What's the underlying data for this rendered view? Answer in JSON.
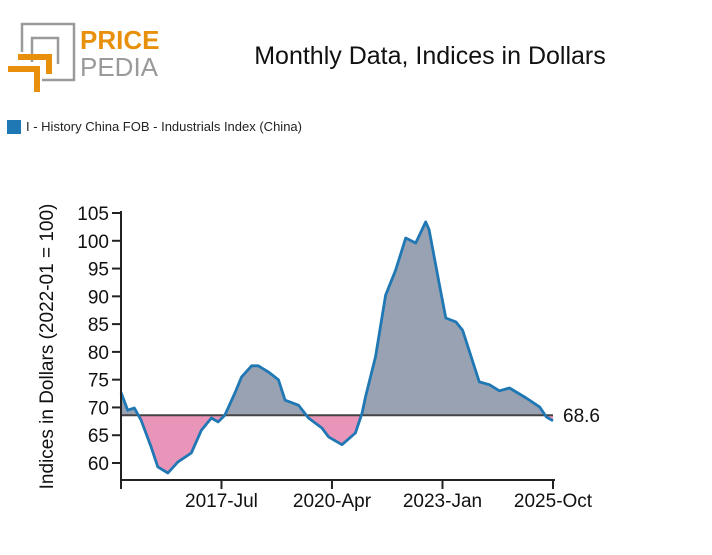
{
  "logo": {
    "line1": "PRICE",
    "line2": "PEDIA",
    "colors": {
      "orange": "#e8900c",
      "gray": "#9a9a9a"
    }
  },
  "title": "Monthly Data, Indices in Dollars",
  "legend": [
    {
      "label": "I - History China FOB - Industrials Index (China)",
      "color": "#1f77b4"
    }
  ],
  "chart_data": {
    "type": "area",
    "title": "Monthly Data, Indices in Dollars",
    "ylabel": "Indices in Dollars (2022-01 = 100)",
    "xlabel": "",
    "xlim": [
      "2015-01",
      "2025-10"
    ],
    "ylim": [
      57,
      105.5
    ],
    "yticks": [
      60,
      65,
      70,
      75,
      80,
      85,
      90,
      95,
      100,
      105
    ],
    "xticks": [
      {
        "date": "2017-07",
        "label": "2017-Jul"
      },
      {
        "date": "2020-04",
        "label": "2020-Apr"
      },
      {
        "date": "2023-01",
        "label": "2023-Jan"
      },
      {
        "date": "2025-10",
        "label": "2025-Oct"
      }
    ],
    "reference_line": {
      "value": 68.6,
      "label": "68.6"
    },
    "colors": {
      "line": "#1f77b4",
      "above": "#98a2b3",
      "below": "#e994b9",
      "reference": "#444444"
    },
    "series": [
      {
        "name": "I - History China FOB - Industrials Index (China)",
        "points": [
          [
            "2015-01",
            72.7
          ],
          [
            "2015-03",
            69.5
          ],
          [
            "2015-05",
            69.9
          ],
          [
            "2015-07",
            67.7
          ],
          [
            "2015-10",
            62.9
          ],
          [
            "2015-12",
            59.3
          ],
          [
            "2016-03",
            58.2
          ],
          [
            "2016-06",
            60.2
          ],
          [
            "2016-10",
            61.8
          ],
          [
            "2017-01",
            65.9
          ],
          [
            "2017-04",
            68.1
          ],
          [
            "2017-06",
            67.4
          ],
          [
            "2017-08",
            68.6
          ],
          [
            "2017-11",
            72.6
          ],
          [
            "2018-01",
            75.5
          ],
          [
            "2018-04",
            77.5
          ],
          [
            "2018-06",
            77.5
          ],
          [
            "2018-09",
            76.4
          ],
          [
            "2018-12",
            75.0
          ],
          [
            "2019-02",
            71.3
          ],
          [
            "2019-06",
            70.4
          ],
          [
            "2019-09",
            68.1
          ],
          [
            "2020-01",
            66.3
          ],
          [
            "2020-03",
            64.7
          ],
          [
            "2020-07",
            63.3
          ],
          [
            "2020-11",
            65.4
          ],
          [
            "2021-01",
            69.0
          ],
          [
            "2021-02",
            71.9
          ],
          [
            "2021-05",
            79.1
          ],
          [
            "2021-08",
            90.2
          ],
          [
            "2021-11",
            94.7
          ],
          [
            "2022-02",
            100.5
          ],
          [
            "2022-05",
            99.6
          ],
          [
            "2022-08",
            103.4
          ],
          [
            "2022-09",
            102.0
          ],
          [
            "2022-12",
            92.4
          ],
          [
            "2023-02",
            86.1
          ],
          [
            "2023-05",
            85.4
          ],
          [
            "2023-07",
            83.9
          ],
          [
            "2023-12",
            74.6
          ],
          [
            "2024-03",
            74.1
          ],
          [
            "2024-06",
            73.0
          ],
          [
            "2024-09",
            73.5
          ],
          [
            "2025-02",
            71.7
          ],
          [
            "2025-06",
            70.1
          ],
          [
            "2025-08",
            68.3
          ],
          [
            "2025-10",
            67.6
          ]
        ]
      }
    ]
  }
}
